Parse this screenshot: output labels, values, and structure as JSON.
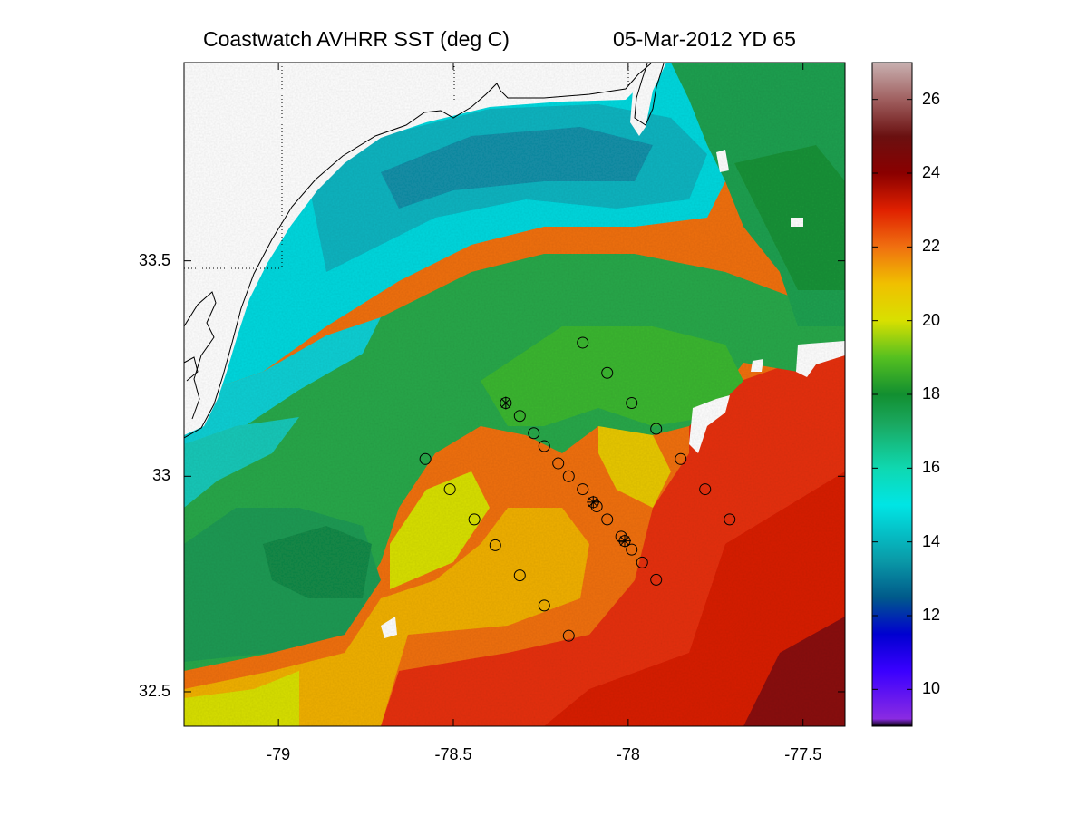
{
  "title": {
    "left": "Coastwatch   AVHRR   SST  (deg C)",
    "date": "05-Mar-2012",
    "yearday": "YD 65"
  },
  "map": {
    "lon_range": [
      -79.27,
      -77.38
    ],
    "lat_range": [
      32.42,
      33.96
    ],
    "x_ticks": [
      {
        "value": -79,
        "label": "-79"
      },
      {
        "value": -78.5,
        "label": "-78.5"
      },
      {
        "value": -78,
        "label": "-78"
      },
      {
        "value": -77.5,
        "label": "-77.5"
      }
    ],
    "y_ticks": [
      {
        "value": 33.5,
        "label": "33.5"
      },
      {
        "value": 33,
        "label": "33"
      },
      {
        "value": 32.5,
        "label": "32.5"
      }
    ],
    "land_color": "#ffffff",
    "coastline_color": "#000000"
  },
  "colorbar": {
    "range": [
      9,
      27
    ],
    "ticks": [
      {
        "value": 10,
        "label": "10"
      },
      {
        "value": 12,
        "label": "12"
      },
      {
        "value": 14,
        "label": "14"
      },
      {
        "value": 16,
        "label": "16"
      },
      {
        "value": 18,
        "label": "18"
      },
      {
        "value": 20,
        "label": "20"
      },
      {
        "value": 22,
        "label": "22"
      },
      {
        "value": 24,
        "label": "24"
      },
      {
        "value": 26,
        "label": "26"
      }
    ],
    "colors": [
      {
        "v": 9.0,
        "c": "#000000"
      },
      {
        "v": 9.2,
        "c": "#8a2be2"
      },
      {
        "v": 10.5,
        "c": "#3a00ff"
      },
      {
        "v": 11.5,
        "c": "#0000d0"
      },
      {
        "v": 12.5,
        "c": "#005a8a"
      },
      {
        "v": 13.5,
        "c": "#0a9aa8"
      },
      {
        "v": 15.0,
        "c": "#00e5e5"
      },
      {
        "v": 16.0,
        "c": "#0fd8b0"
      },
      {
        "v": 17.2,
        "c": "#1aa860"
      },
      {
        "v": 18.0,
        "c": "#128f30"
      },
      {
        "v": 19.0,
        "c": "#55c020"
      },
      {
        "v": 20.0,
        "c": "#d8e000"
      },
      {
        "v": 21.0,
        "c": "#f0c000"
      },
      {
        "v": 22.0,
        "c": "#f07010"
      },
      {
        "v": 23.0,
        "c": "#e02000"
      },
      {
        "v": 24.0,
        "c": "#8a0000"
      },
      {
        "v": 25.0,
        "c": "#6a1010"
      },
      {
        "v": 26.0,
        "c": "#a06060"
      },
      {
        "v": 27.0,
        "c": "#c8b0b0"
      }
    ]
  },
  "stations": [
    {
      "lon": -78.35,
      "lat": 33.17,
      "cross": true
    },
    {
      "lon": -78.31,
      "lat": 33.14,
      "cross": false
    },
    {
      "lon": -78.27,
      "lat": 33.1,
      "cross": false
    },
    {
      "lon": -78.24,
      "lat": 33.07,
      "cross": false
    },
    {
      "lon": -78.2,
      "lat": 33.03,
      "cross": false
    },
    {
      "lon": -78.17,
      "lat": 33.0,
      "cross": false
    },
    {
      "lon": -78.13,
      "lat": 32.97,
      "cross": false
    },
    {
      "lon": -78.1,
      "lat": 32.94,
      "cross": true
    },
    {
      "lon": -78.09,
      "lat": 32.93,
      "cross": false
    },
    {
      "lon": -78.06,
      "lat": 32.9,
      "cross": false
    },
    {
      "lon": -78.02,
      "lat": 32.86,
      "cross": false
    },
    {
      "lon": -78.01,
      "lat": 32.85,
      "cross": true
    },
    {
      "lon": -77.99,
      "lat": 32.83,
      "cross": false
    },
    {
      "lon": -77.96,
      "lat": 32.8,
      "cross": false
    },
    {
      "lon": -77.92,
      "lat": 32.76,
      "cross": false
    },
    {
      "lon": -78.13,
      "lat": 33.31,
      "cross": false
    },
    {
      "lon": -78.06,
      "lat": 33.24,
      "cross": false
    },
    {
      "lon": -77.99,
      "lat": 33.17,
      "cross": false
    },
    {
      "lon": -77.92,
      "lat": 33.11,
      "cross": false
    },
    {
      "lon": -77.85,
      "lat": 33.04,
      "cross": false
    },
    {
      "lon": -77.78,
      "lat": 32.97,
      "cross": false
    },
    {
      "lon": -77.71,
      "lat": 32.9,
      "cross": false
    },
    {
      "lon": -78.58,
      "lat": 33.04,
      "cross": false
    },
    {
      "lon": -78.51,
      "lat": 32.97,
      "cross": false
    },
    {
      "lon": -78.44,
      "lat": 32.9,
      "cross": false
    },
    {
      "lon": -78.38,
      "lat": 32.84,
      "cross": false
    },
    {
      "lon": -78.31,
      "lat": 32.77,
      "cross": false
    },
    {
      "lon": -78.24,
      "lat": 32.7,
      "cross": false
    },
    {
      "lon": -78.17,
      "lat": 32.63,
      "cross": false
    }
  ]
}
